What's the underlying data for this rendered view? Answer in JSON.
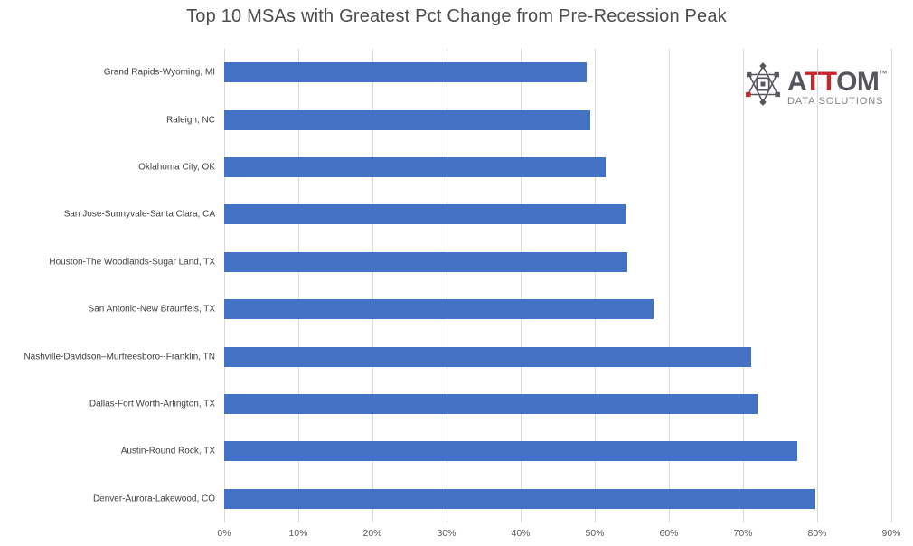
{
  "chart_data": {
    "type": "bar",
    "orientation": "horizontal",
    "title": "Top 10 MSAs with Greatest Pct Change from Pre-Recession Peak",
    "categories": [
      "Grand Rapids-Wyoming, MI",
      "Raleigh, NC",
      "Oklahoma City, OK",
      "San Jose-Sunnyvale-Santa Clara, CA",
      "Houston-The Woodlands-Sugar Land, TX",
      "San Antonio-New Braunfels, TX",
      "Nashville-Davidson–Murfreesboro--Franklin, TN",
      "Dallas-Fort Worth-Arlington, TX",
      "Austin-Round Rock, TX",
      "Denver-Aurora-Lakewood, CO"
    ],
    "values": [
      48.9,
      49.4,
      51.5,
      54.1,
      54.4,
      57.9,
      71.1,
      72.0,
      77.3,
      79.7
    ],
    "unit": "%",
    "xlabel": "",
    "ylabel": "",
    "xlim": [
      0,
      90
    ],
    "x_ticks": [
      "0%",
      "10%",
      "20%",
      "30%",
      "40%",
      "50%",
      "60%",
      "70%",
      "80%",
      "90%"
    ],
    "grid": "vertical-only",
    "legend": "none",
    "bar_color": "#4472c4",
    "gridline_color": "#d9d9d9"
  },
  "logo": {
    "name": "ATTOM Data Solutions logo",
    "word_part1": "A",
    "word_part2": "TT",
    "word_part3": "OM",
    "trademark": "™",
    "subtitle": "DATA SOLUTIONS",
    "gray": "#54565b",
    "red": "#c9252d"
  },
  "colors": {
    "background": "#ffffff",
    "title_text": "#4d4d4d",
    "category_label_text": "#404040",
    "tick_label_text": "#595959"
  }
}
